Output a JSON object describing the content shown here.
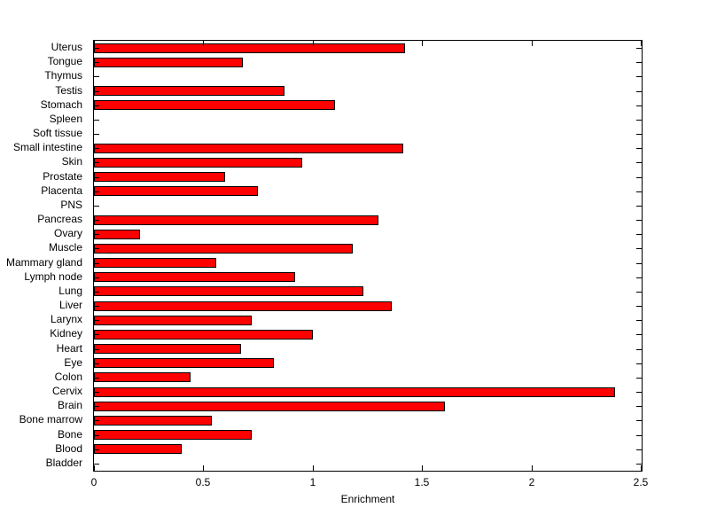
{
  "chart_data": {
    "type": "bar",
    "orientation": "horizontal",
    "title": "",
    "xlabel": "Enrichment",
    "ylabel": "",
    "xlim": [
      0,
      2.5
    ],
    "xticks": [
      0,
      0.5,
      1,
      1.5,
      2,
      2.5
    ],
    "xtick_labels": [
      "0",
      "0.5",
      "1",
      "1.5",
      "2",
      "2.5"
    ],
    "grid": false,
    "legend": null,
    "bar_color": "#ff0000",
    "bar_edge_color": "#000000",
    "categories": [
      "Uterus",
      "Tongue",
      "Thymus",
      "Testis",
      "Stomach",
      "Spleen",
      "Soft tissue",
      "Small intestine",
      "Skin",
      "Prostate",
      "Placenta",
      "PNS",
      "Pancreas",
      "Ovary",
      "Muscle",
      "Mammary gland",
      "Lymph node",
      "Lung",
      "Liver",
      "Larynx",
      "Kidney",
      "Heart",
      "Eye",
      "Colon",
      "Cervix",
      "Brain",
      "Bone marrow",
      "Bone",
      "Blood",
      "Bladder"
    ],
    "values": [
      1.42,
      0.68,
      0,
      0.87,
      1.1,
      0,
      0,
      1.41,
      0.95,
      0.6,
      0.75,
      0,
      1.3,
      0.21,
      1.18,
      0.56,
      0.92,
      1.23,
      1.36,
      0.72,
      1.0,
      0.67,
      0.82,
      0.44,
      2.38,
      1.6,
      0.54,
      0.72,
      0.4,
      0
    ]
  }
}
